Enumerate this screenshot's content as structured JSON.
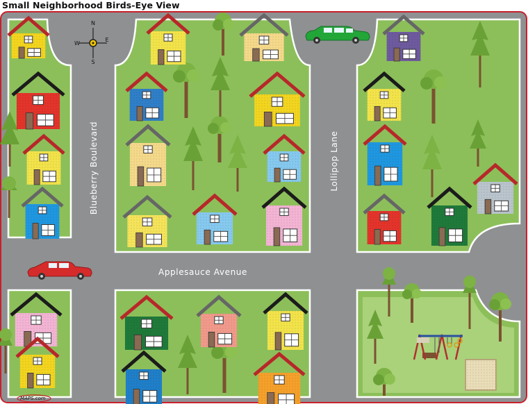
{
  "title": "Small Neighborhood Birds-Eye View",
  "streets": {
    "vertical_left": "Blueberry Boulevard",
    "vertical_right": "Lollipop Lane",
    "horizontal": "Applesauce Avenue"
  },
  "compass": {
    "n": "N",
    "s": "S",
    "e": "E",
    "w": "W"
  },
  "logo": "MAPS.com",
  "colors": {
    "grass": "#8cbf5a",
    "road": "#8f9092",
    "park": "#a9d27a",
    "border": "#c8202a",
    "car_red": "#d62b2b",
    "car_green": "#23a638"
  }
}
